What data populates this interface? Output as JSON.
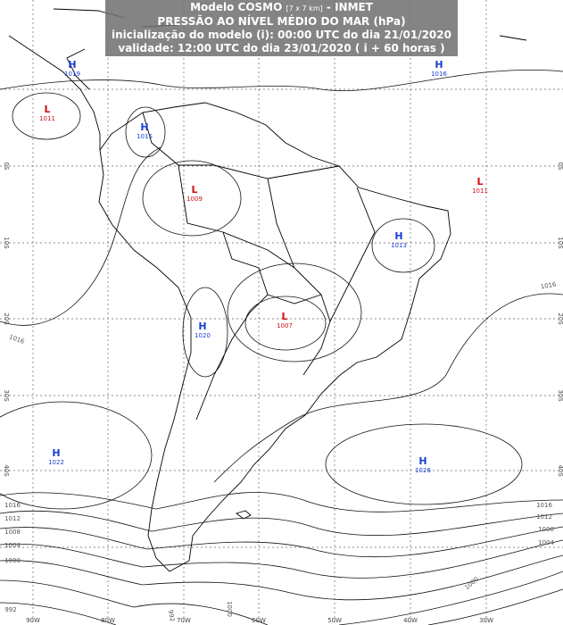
{
  "header": {
    "model": "Modelo COSMO",
    "resolution": "[7 x 7 km]",
    "agency": "- INMET",
    "title": "PRESSÃO AO NÍVEL MÉDIO DO MAR (hPa)",
    "init": "inicialização do modelo (i): 00:00 UTC do dia 21/01/2020",
    "valid": "validade: 12:00 UTC do dia 23/01/2020 ( i + 60 horas )"
  },
  "grid": {
    "lon_labels": [
      "90W",
      "80W",
      "70W",
      "60W",
      "50W",
      "40W",
      "30W"
    ],
    "lat_labels": [
      "0S",
      "10S",
      "20S",
      "30S",
      "40S"
    ]
  },
  "centers": [
    {
      "kind": "H",
      "value": 1019
    },
    {
      "kind": "L",
      "value": 1011
    },
    {
      "kind": "H",
      "value": 1015
    },
    {
      "kind": "L",
      "value": 1009
    },
    {
      "kind": "H",
      "value": 1016
    },
    {
      "kind": "L",
      "value": 1011
    },
    {
      "kind": "H",
      "value": 1013
    },
    {
      "kind": "H",
      "value": 1020
    },
    {
      "kind": "L",
      "value": 1007
    },
    {
      "kind": "H",
      "value": 1022
    },
    {
      "kind": "H",
      "value": 1026
    }
  ],
  "isobar_labels": [
    1016,
    1016,
    1016,
    1012,
    1008,
    1004,
    1000,
    992,
    1016,
    1012,
    1008,
    1004,
    1000,
    992,
    1000
  ]
}
